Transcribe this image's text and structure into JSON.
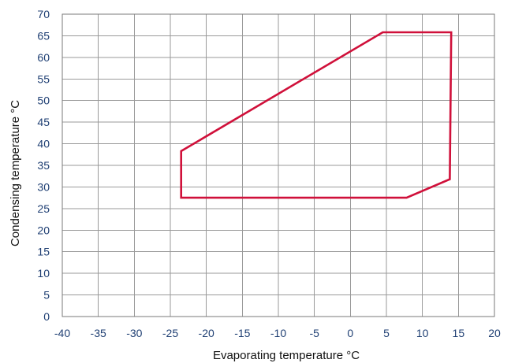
{
  "chart_data": {
    "type": "line",
    "title": "",
    "xlabel": "Evaporating temperature °C",
    "ylabel": "Condensing temperature °C",
    "xlim": [
      -40,
      20
    ],
    "ylim": [
      0,
      70
    ],
    "x_ticks": [
      -40,
      -35,
      -30,
      -25,
      -20,
      -15,
      -10,
      -5,
      0,
      5,
      10,
      15,
      20
    ],
    "y_ticks": [
      0,
      5,
      10,
      15,
      20,
      25,
      30,
      35,
      40,
      45,
      50,
      55,
      60,
      65,
      70
    ],
    "x_tick_labels": [
      "-40",
      "-35",
      "-30",
      "-25",
      "-20",
      "-15",
      "-10",
      "-5",
      "0",
      "5",
      "10",
      "15",
      "20"
    ],
    "y_tick_labels": [
      "0",
      "5",
      "10",
      "15",
      "20",
      "25",
      "30",
      "35",
      "40",
      "45",
      "50",
      "55",
      "60",
      "65",
      "70"
    ],
    "grid": true,
    "line_color": "#d0103a",
    "series": [
      {
        "closed": true,
        "points": [
          {
            "x": -23.5,
            "y": 38.3
          },
          {
            "x": 4.5,
            "y": 65.8
          },
          {
            "x": 14.0,
            "y": 65.8
          },
          {
            "x": 13.8,
            "y": 31.8
          },
          {
            "x": 7.8,
            "y": 27.5
          },
          {
            "x": -23.5,
            "y": 27.5
          }
        ]
      }
    ]
  }
}
